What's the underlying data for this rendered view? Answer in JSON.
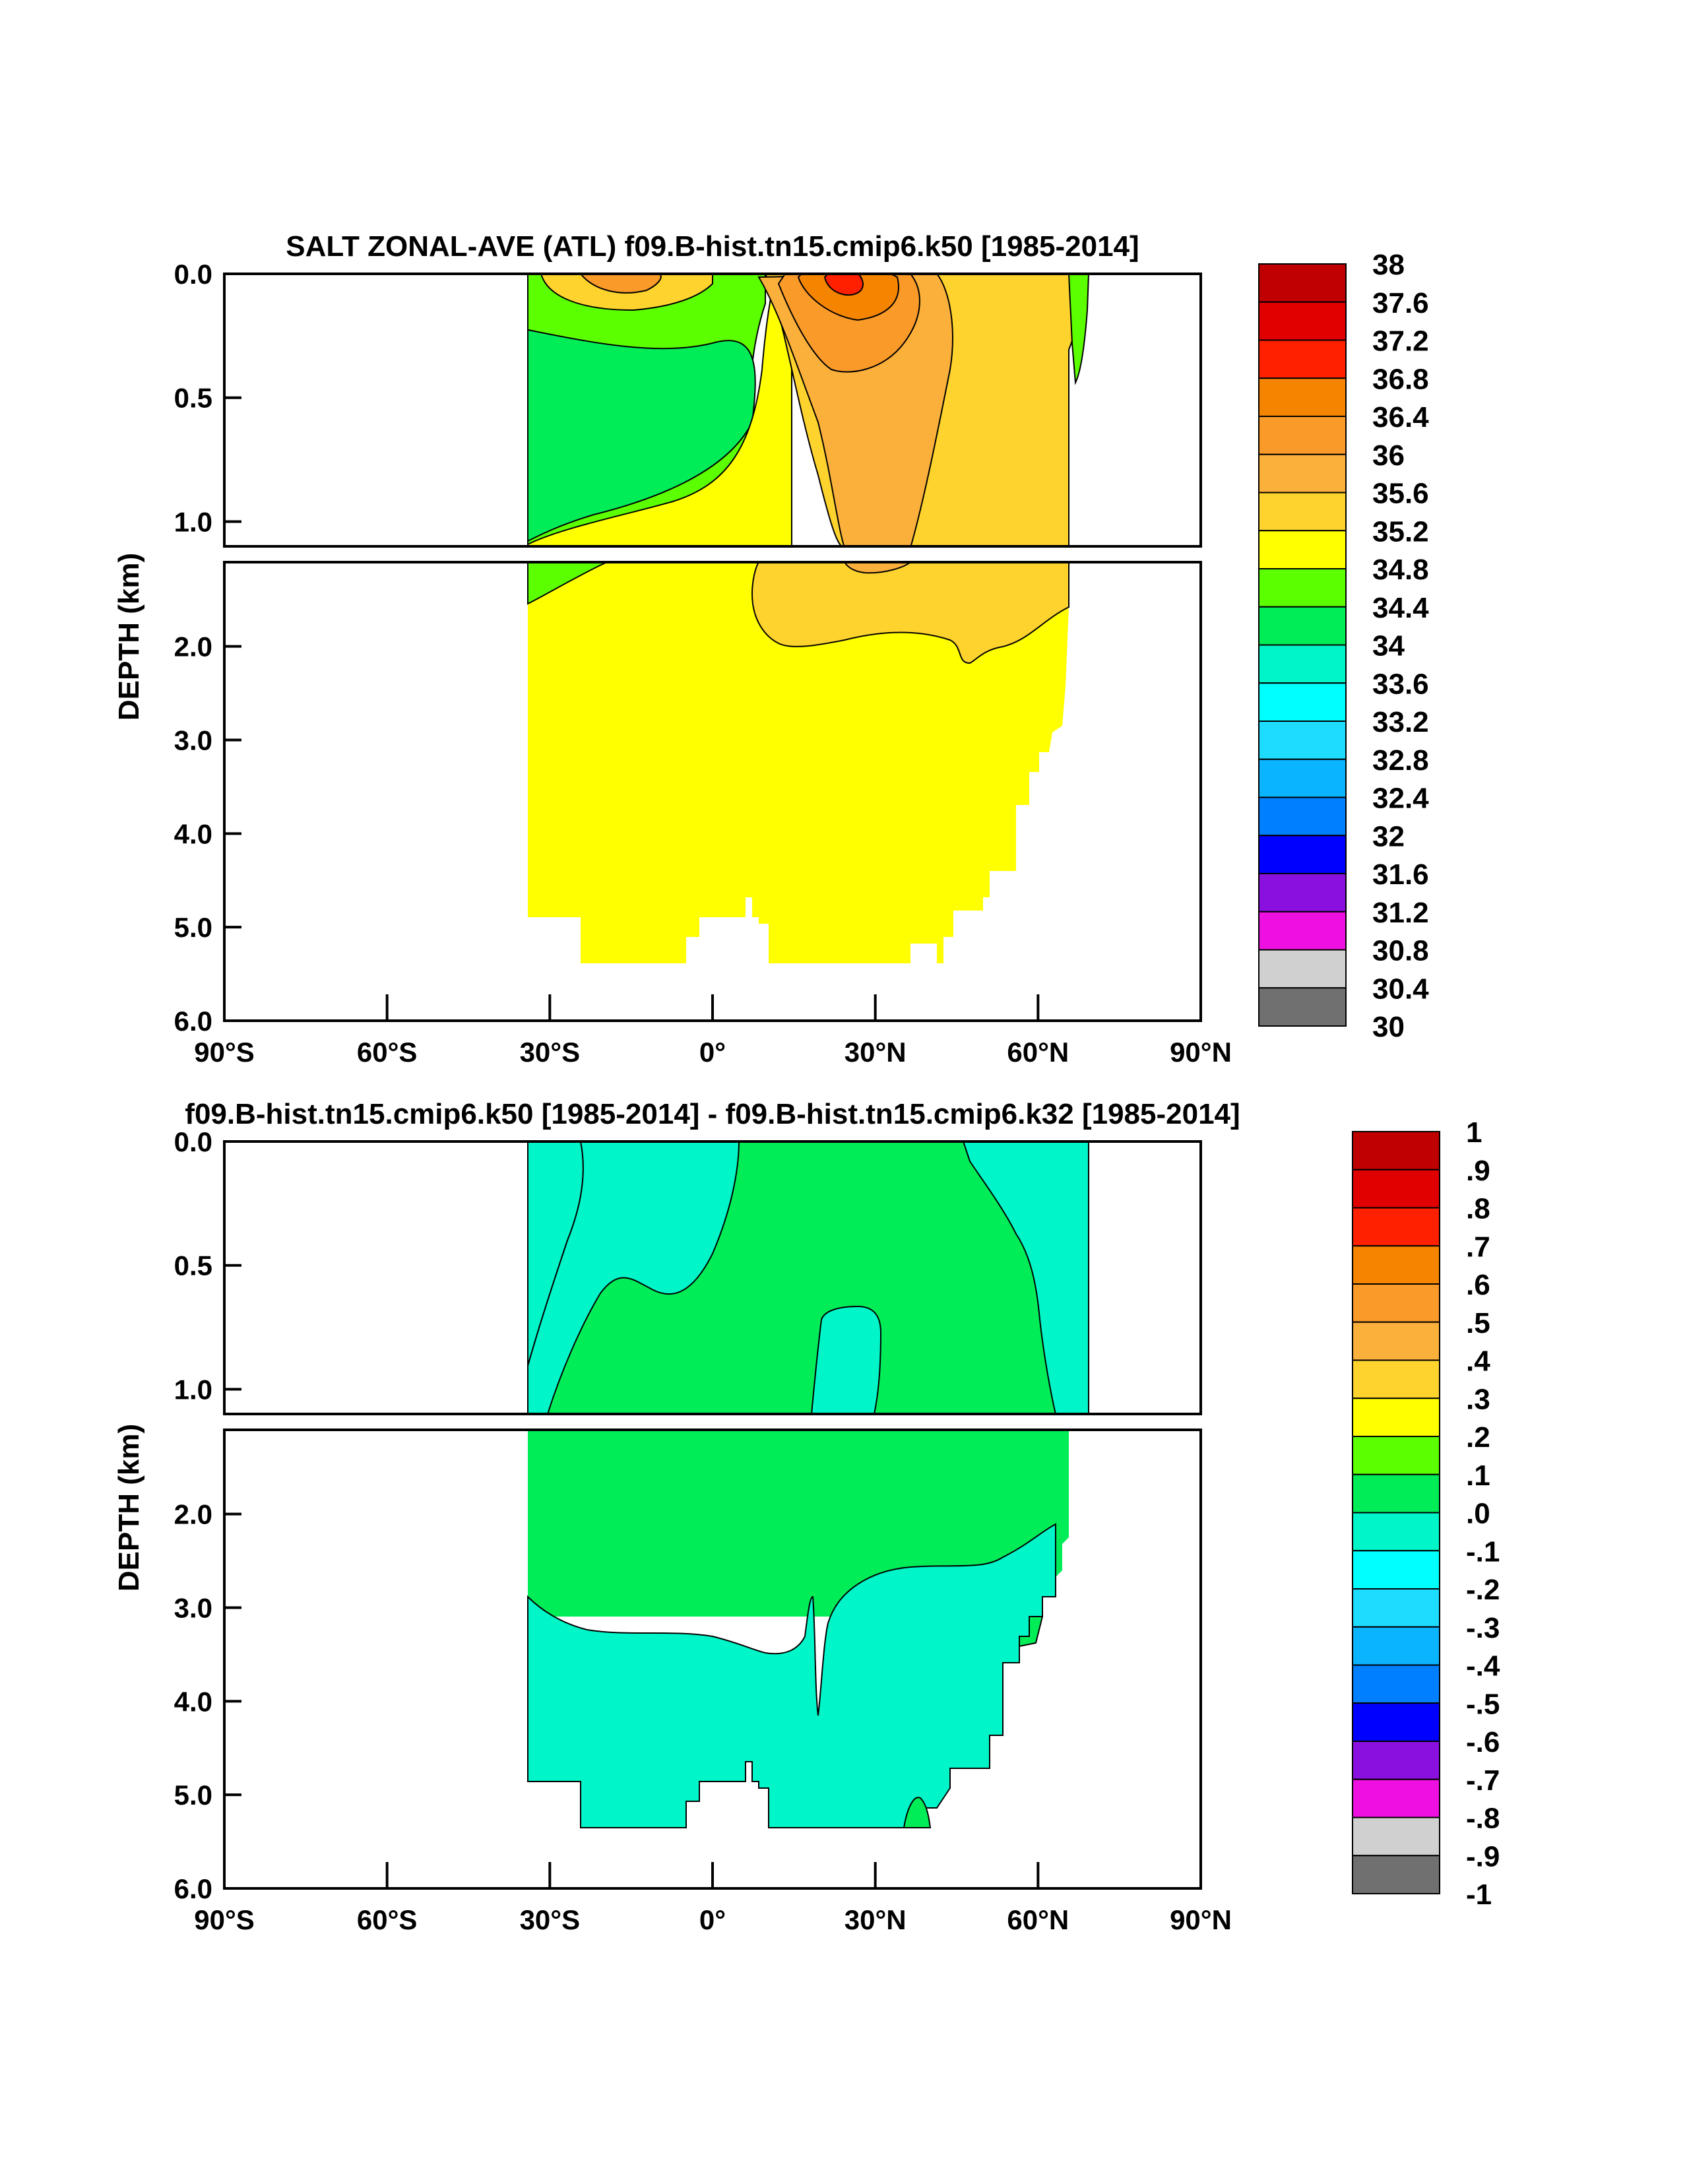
{
  "chart_data": [
    {
      "type": "contour",
      "title": "SALT ZONAL-AVE (ATL) f09.B-hist.tn15.cmip6.k50 [1985-2014]",
      "ylabel": "DEPTH (km)",
      "xlabel": "",
      "x_ticks": [
        "90°S",
        "60°S",
        "30°S",
        "0°",
        "30°N",
        "60°N",
        "90°N"
      ],
      "x_tick_values": [
        -90,
        -60,
        -30,
        0,
        30,
        60,
        90
      ],
      "upper_panel": {
        "ylim": [
          0.0,
          1.1
        ],
        "y_ticks": [
          "0.0",
          "0.5",
          "1.0"
        ],
        "y_tick_values": [
          0.0,
          0.5,
          1.0
        ]
      },
      "lower_panel": {
        "ylim": [
          1.1,
          6.0
        ],
        "y_ticks": [
          "2.0",
          "3.0",
          "4.0",
          "5.0",
          "6.0"
        ],
        "y_tick_values": [
          2.0,
          3.0,
          4.0,
          5.0,
          6.0
        ]
      },
      "data_extent_lat": [
        -34,
        68
      ],
      "colorbar": {
        "labels": [
          "38",
          "37.6",
          "37.2",
          "36.8",
          "36.4",
          "36",
          "35.6",
          "35.2",
          "34.8",
          "34.4",
          "34",
          "33.6",
          "33.2",
          "32.8",
          "32.4",
          "32",
          "31.6",
          "31.2",
          "30.8",
          "30.4",
          "30"
        ],
        "colors": [
          "#c00000",
          "#e00000",
          "#ff2000",
          "#f58400",
          "#fa9a28",
          "#fcb03c",
          "#ffd32e",
          "#ffff00",
          "#5cff00",
          "#00ed58",
          "#00f5c8",
          "#00ffff",
          "#1edcff",
          "#0ab4ff",
          "#0080ff",
          "#0000ff",
          "#8a10e0",
          "#ee10e0",
          "#d0d0d0",
          "#707070"
        ]
      },
      "regions": [
        {
          "name": "upper-34.4",
          "min": 34.4,
          "max": 34.8,
          "lat": [
            -34,
            8
          ],
          "depth_km": [
            0.05,
            1.1
          ]
        },
        {
          "name": "upper-34.0",
          "min": 34.0,
          "max": 34.4,
          "lat": [
            -34,
            -22
          ],
          "depth_km": [
            0.3,
            0.8
          ]
        },
        {
          "name": "subtropical-35.6",
          "min": 35.6,
          "max": 36.0,
          "lat": [
            12,
            42
          ],
          "depth_km": [
            0.0,
            1.2
          ]
        },
        {
          "name": "core-36.8",
          "min": 36.8,
          "max": 37.2,
          "lat": [
            20,
            26
          ],
          "depth_km": [
            0.0,
            0.08
          ]
        },
        {
          "name": "nadw-35.2",
          "min": 35.2,
          "max": 35.6,
          "lat": [
            5,
            65
          ],
          "depth_km": [
            1.1,
            2.0
          ]
        },
        {
          "name": "deep-34.8",
          "min": 34.8,
          "max": 35.2,
          "lat": [
            -34,
            65
          ],
          "depth_km": [
            1.5,
            5.4
          ]
        }
      ]
    },
    {
      "type": "contour",
      "title": "f09.B-hist.tn15.cmip6.k50 [1985-2014] - f09.B-hist.tn15.cmip6.k32 [1985-2014]",
      "ylabel": "DEPTH (km)",
      "xlabel": "",
      "x_ticks": [
        "90°S",
        "60°S",
        "30°S",
        "0°",
        "30°N",
        "60°N",
        "90°N"
      ],
      "x_tick_values": [
        -90,
        -60,
        -30,
        0,
        30,
        60,
        90
      ],
      "upper_panel": {
        "ylim": [
          0.0,
          1.1
        ],
        "y_ticks": [
          "0.0",
          "0.5",
          "1.0"
        ],
        "y_tick_values": [
          0.0,
          0.5,
          1.0
        ]
      },
      "lower_panel": {
        "ylim": [
          1.1,
          6.0
        ],
        "y_ticks": [
          "2.0",
          "3.0",
          "4.0",
          "5.0",
          "6.0"
        ],
        "y_tick_values": [
          2.0,
          3.0,
          4.0,
          5.0,
          6.0
        ]
      },
      "data_extent_lat": [
        -34,
        68
      ],
      "colorbar": {
        "labels": [
          "1",
          ".9",
          ".8",
          ".7",
          ".6",
          ".5",
          ".4",
          ".3",
          ".2",
          ".1",
          ".0",
          "-.1",
          "-.2",
          "-.3",
          "-.4",
          "-.5",
          "-.6",
          "-.7",
          "-.8",
          "-.9",
          "-1"
        ],
        "colors": [
          "#c00000",
          "#e00000",
          "#ff2000",
          "#f58400",
          "#fa9a28",
          "#fcb03c",
          "#ffd32e",
          "#ffff00",
          "#5cff00",
          "#00ed58",
          "#00f5c8",
          "#00ffff",
          "#1edcff",
          "#0ab4ff",
          "#0080ff",
          "#0000ff",
          "#8a10e0",
          "#ee10e0",
          "#d0d0d0",
          "#707070"
        ]
      },
      "regions": [
        {
          "name": "diff-0.0-upper",
          "min": 0.0,
          "max": 0.1,
          "lat": [
            -34,
            60
          ],
          "depth_km": [
            0.0,
            1.1
          ]
        },
        {
          "name": "diff-neg-west",
          "min": -0.1,
          "max": 0.0,
          "lat": [
            -34,
            -5
          ],
          "depth_km": [
            0.0,
            1.1
          ]
        },
        {
          "name": "diff-neg-east",
          "min": -0.1,
          "max": 0.0,
          "lat": [
            48,
            68
          ],
          "depth_km": [
            0.0,
            1.1
          ]
        },
        {
          "name": "diff-neg-pocket",
          "min": -0.1,
          "max": 0.0,
          "lat": [
            18,
            31
          ],
          "depth_km": [
            0.8,
            1.8
          ]
        },
        {
          "name": "diff-0.0-mid",
          "min": 0.0,
          "max": 0.1,
          "lat": [
            -34,
            65
          ],
          "depth_km": [
            1.1,
            3.0
          ]
        },
        {
          "name": "diff-neg-deep",
          "min": -0.1,
          "max": 0.0,
          "lat": [
            -34,
            62
          ],
          "depth_km": [
            2.7,
            5.4
          ]
        }
      ]
    }
  ]
}
